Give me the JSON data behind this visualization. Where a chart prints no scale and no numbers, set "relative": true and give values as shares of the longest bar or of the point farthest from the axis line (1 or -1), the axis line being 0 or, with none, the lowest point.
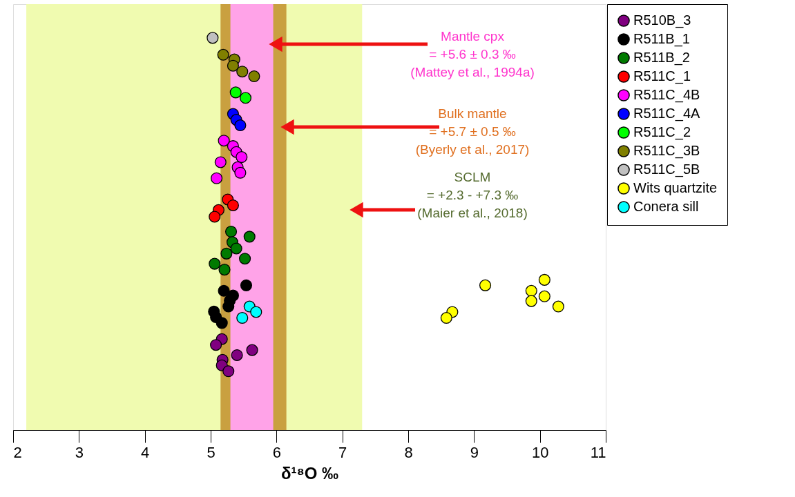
{
  "chart_data": {
    "type": "scatter",
    "relative": true,
    "xlabel": "δ¹⁸O ‰",
    "xlim": [
      2,
      11
    ],
    "xticks": [
      2,
      3,
      4,
      5,
      6,
      7,
      8,
      9,
      10,
      11
    ],
    "grid": false,
    "legend": "top right",
    "marker": "circle",
    "bands": [
      {
        "axis": "x",
        "from": 2.2,
        "to": 7.3,
        "color": "#f0fbb0"
      },
      {
        "axis": "x",
        "from": 5.15,
        "to": 6.15,
        "color": "#c9a040"
      },
      {
        "axis": "x",
        "from": 5.3,
        "to": 5.95,
        "color": "#ffa3e8"
      }
    ],
    "annotations": [
      "Mantle cpx\n= +5.6 ± 0.3 ‰\n(Mattey et al., 1994a)",
      "Bulk mantle\n= +5.7 ± 0.5 ‰\n(Byerly et al., 2017)",
      "SCLM\n= +2.3 - +7.3 ‰\n(Maier et al., 2018)"
    ],
    "series": [
      {
        "name": "R510B_3",
        "color": "#800080",
        "x": [
          5.17,
          5.08,
          5.63,
          5.4,
          5.18,
          5.17,
          5.27
        ],
        "values": [
          0.232,
          0.217,
          0.204,
          0.191,
          0.179,
          0.165,
          0.15
        ]
      },
      {
        "name": "R511B_1",
        "color": "#000000",
        "x": [
          5.54,
          5.2,
          5.34,
          5.29,
          5.27,
          5.05,
          5.08,
          5.17
        ],
        "values": [
          0.369,
          0.355,
          0.343,
          0.33,
          0.315,
          0.302,
          0.288,
          0.273
        ]
      },
      {
        "name": "R511B_2",
        "color": "#007a00",
        "x": [
          5.31,
          5.59,
          5.33,
          5.39,
          5.24,
          5.52,
          5.06,
          5.21
        ],
        "values": [
          0.506,
          0.493,
          0.479,
          0.463,
          0.45,
          0.437,
          0.424,
          0.409
        ]
      },
      {
        "name": "R511C_1",
        "color": "#ff0000",
        "x": [
          5.26,
          5.34,
          5.12,
          5.06
        ],
        "values": [
          0.588,
          0.573,
          0.561,
          0.544
        ]
      },
      {
        "name": "R511C_4B",
        "color": "#ff00ff",
        "x": [
          5.2,
          5.34,
          5.39,
          5.47,
          5.15,
          5.41,
          5.45,
          5.09
        ],
        "values": [
          0.738,
          0.724,
          0.709,
          0.696,
          0.683,
          0.67,
          0.656,
          0.642
        ]
      },
      {
        "name": "R511C_4A",
        "color": "#0000ff",
        "x": [
          5.34,
          5.39,
          5.45
        ],
        "values": [
          0.806,
          0.791,
          0.777
        ]
      },
      {
        "name": "R511C_2",
        "color": "#00ff00",
        "x": [
          5.38,
          5.53
        ],
        "values": [
          0.861,
          0.847
        ]
      },
      {
        "name": "R511C_3B",
        "color": "#808000",
        "x": [
          5.19,
          5.36,
          5.34,
          5.48,
          5.66
        ],
        "values": [
          0.957,
          0.945,
          0.929,
          0.914,
          0.902
        ]
      },
      {
        "name": "R511C_5B",
        "color": "#c0c0c0",
        "x": [
          5.03
        ],
        "values": [
          1.0
        ]
      },
      {
        "name": "Wits quartzite",
        "color": "#ffff00",
        "x": [
          9.17,
          8.67,
          8.58,
          9.87,
          9.87,
          10.07,
          10.07,
          10.28
        ],
        "values": [
          0.369,
          0.301,
          0.286,
          0.355,
          0.329,
          0.383,
          0.341,
          0.315
        ]
      },
      {
        "name": "Conera sill",
        "color": "#00ffff",
        "x": [
          5.59,
          5.69,
          5.48
        ],
        "values": [
          0.315,
          0.301,
          0.286
        ]
      }
    ]
  }
}
